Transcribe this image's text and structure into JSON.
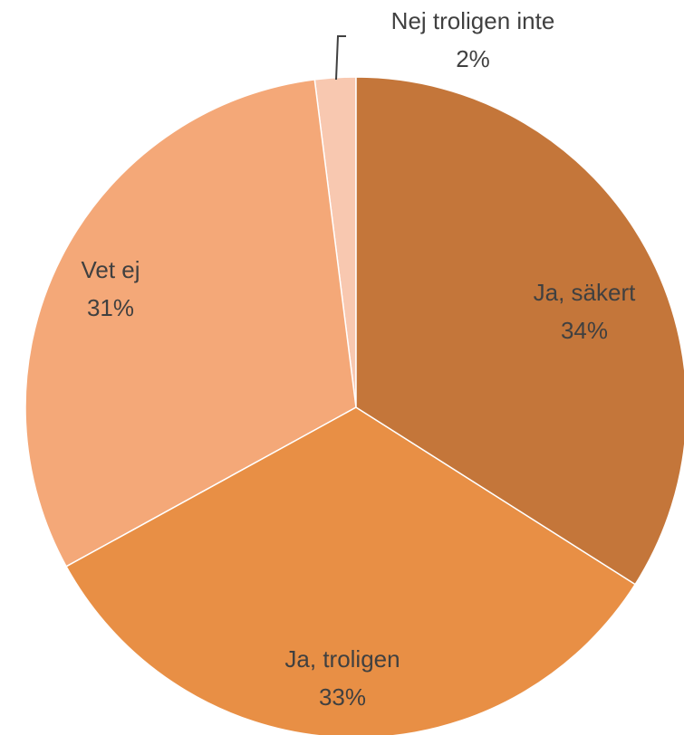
{
  "chart_data": {
    "type": "pie",
    "categories": [
      "Ja, säkert",
      "Ja, troligen",
      "Vet ej",
      "Nej troligen inte"
    ],
    "values": [
      34,
      33,
      31,
      2
    ],
    "value_labels": [
      "34%",
      "33%",
      "31%",
      "2%"
    ],
    "colors": [
      "#c4763a",
      "#e88f45",
      "#f4a878",
      "#f8c8b0"
    ]
  }
}
